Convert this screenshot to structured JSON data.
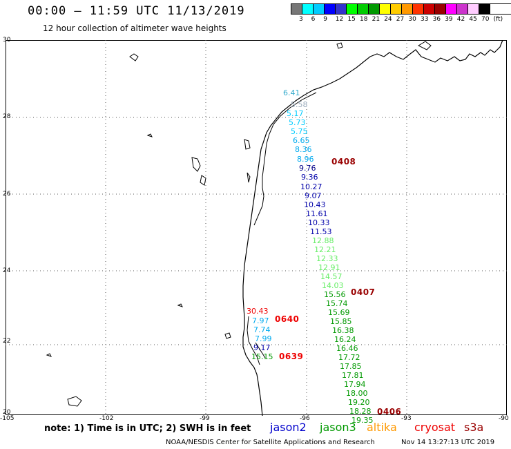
{
  "header": {
    "title": "00:00 – 11:59 UTC 11/13/2019",
    "subtitle": "12 hour collection of altimeter wave heights"
  },
  "scale": {
    "colors": [
      "#777777",
      "#00ffff",
      "#00ccff",
      "#0000ff",
      "#3333cc",
      "#00ff00",
      "#00cc00",
      "#009900",
      "#ffff00",
      "#ffcc00",
      "#ff9900",
      "#ff3300",
      "#cc0000",
      "#990000",
      "#ff00ff",
      "#cc33cc",
      "#ffccff",
      "#000000"
    ],
    "labels": [
      "3",
      "6",
      "9",
      "12",
      "15",
      "18",
      "21",
      "24",
      "27",
      "30",
      "33",
      "36",
      "39",
      "42",
      "45",
      "70",
      "(ft)"
    ]
  },
  "axes": {
    "lat_labels": [
      "30",
      "28",
      "26",
      "24",
      "22",
      "20"
    ],
    "lon_labels": [
      "-105",
      "-102",
      "-99",
      "-96",
      "-93",
      "-90"
    ]
  },
  "observations": [
    {
      "text": "6.41",
      "color": "#33aacc"
    },
    {
      "text": "5.58",
      "color": "#99aabb"
    },
    {
      "text": "5.17",
      "color": "#00ccff"
    },
    {
      "text": "5.73",
      "color": "#00ccff"
    },
    {
      "text": "5.75",
      "color": "#00ccff"
    },
    {
      "text": "6.65",
      "color": "#00aaee"
    },
    {
      "text": "8.36",
      "color": "#00aaee"
    },
    {
      "text": "8.96",
      "color": "#00aaee"
    },
    {
      "text": "9.76",
      "color": "#000088"
    },
    {
      "text": "9.36",
      "color": "#0000aa"
    },
    {
      "text": "10.27",
      "color": "#0000aa"
    },
    {
      "text": "9.07",
      "color": "#0000aa"
    },
    {
      "text": "10.43",
      "color": "#0000aa"
    },
    {
      "text": "11.61",
      "color": "#0000aa"
    },
    {
      "text": "10.33",
      "color": "#0000aa"
    },
    {
      "text": "11.53",
      "color": "#0000aa"
    },
    {
      "text": "12.88",
      "color": "#66ee66"
    },
    {
      "text": "12.21",
      "color": "#66ee66"
    },
    {
      "text": "12.33",
      "color": "#66ee66"
    },
    {
      "text": "12.91",
      "color": "#66ee66"
    },
    {
      "text": "14.57",
      "color": "#66ee66"
    },
    {
      "text": "14.03",
      "color": "#66ee66"
    },
    {
      "text": "15.56",
      "color": "#009900"
    },
    {
      "text": "15.74",
      "color": "#009900"
    },
    {
      "text": "15.69",
      "color": "#009900"
    },
    {
      "text": "15.85",
      "color": "#009900"
    },
    {
      "text": "16.38",
      "color": "#009900"
    },
    {
      "text": "16.24",
      "color": "#009900"
    },
    {
      "text": "16.46",
      "color": "#009900"
    },
    {
      "text": "17.72",
      "color": "#009900"
    },
    {
      "text": "17.85",
      "color": "#009900"
    },
    {
      "text": "17.81",
      "color": "#009900"
    },
    {
      "text": "17.94",
      "color": "#009900"
    },
    {
      "text": "18.00",
      "color": "#009900"
    },
    {
      "text": "19.20",
      "color": "#009900"
    },
    {
      "text": "18.28",
      "color": "#009900"
    },
    {
      "text": "19.35",
      "color": "#009900"
    },
    {
      "text": "30.43",
      "color": "#ee0000"
    },
    {
      "text": "7.97",
      "color": "#00aaee"
    },
    {
      "text": "7.74",
      "color": "#00aaee"
    },
    {
      "text": "7.99",
      "color": "#00aaee"
    },
    {
      "text": "9.17",
      "color": "#0000aa"
    },
    {
      "text": "15.15",
      "color": "#009900"
    }
  ],
  "pass_times": [
    {
      "text": "0408",
      "color": "#990000"
    },
    {
      "text": "0407",
      "color": "#990000"
    },
    {
      "text": "0640",
      "color": "#ee0000"
    },
    {
      "text": "0639",
      "color": "#ee0000"
    },
    {
      "text": "0406",
      "color": "#990000"
    }
  ],
  "footer": {
    "note": "note: 1) Time is in UTC; 2) SWH is in feet",
    "satellites": [
      {
        "name": "jason2",
        "color": "#0000cc"
      },
      {
        "name": "jason3",
        "color": "#009900"
      },
      {
        "name": "altika",
        "color": "#ff9900"
      },
      {
        "name": "cryosat",
        "color": "#ee0000"
      },
      {
        "name": "s3a",
        "color": "#990000"
      }
    ],
    "credit": "NOAA/NESDIS Center for Satellite Applications and Research",
    "timestamp": "Nov 14 13:27:13 UTC 2019"
  }
}
